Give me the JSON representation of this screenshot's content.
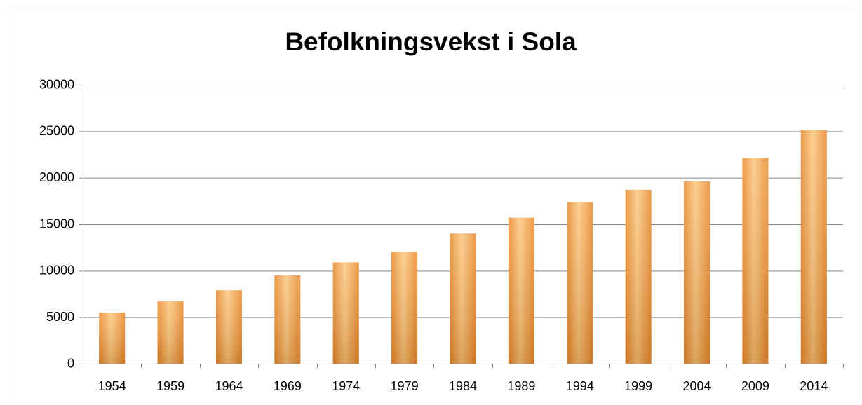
{
  "chart_data": {
    "type": "bar",
    "title": "Befolkningsvekst i Sola",
    "categories": [
      "1954",
      "1959",
      "1964",
      "1969",
      "1974",
      "1979",
      "1984",
      "1989",
      "1994",
      "1999",
      "2004",
      "2009",
      "2014"
    ],
    "values": [
      5500,
      6700,
      7900,
      9500,
      10900,
      12000,
      14000,
      15700,
      17400,
      18700,
      19600,
      22100,
      25100
    ],
    "color": "#e8892c",
    "ylim": [
      0,
      30000
    ],
    "yticks": [
      0,
      5000,
      10000,
      15000,
      20000,
      25000,
      30000
    ],
    "grid": true
  }
}
